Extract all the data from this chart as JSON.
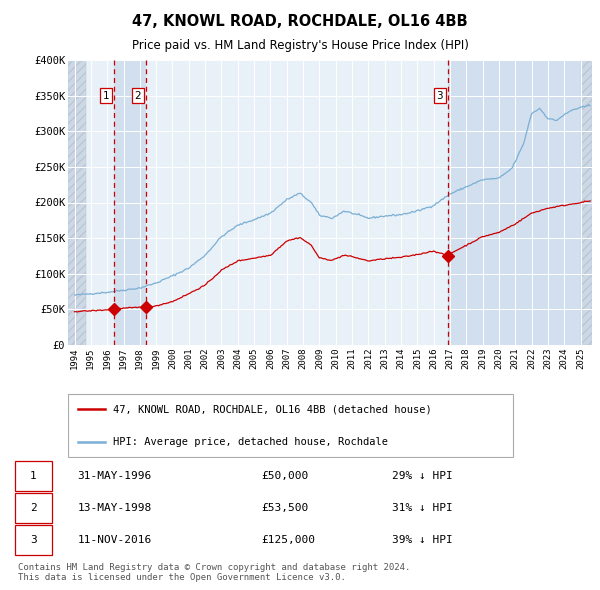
{
  "title": "47, KNOWL ROAD, ROCHDALE, OL16 4BB",
  "subtitle": "Price paid vs. HM Land Registry's House Price Index (HPI)",
  "ylim": [
    0,
    400000
  ],
  "yticks": [
    0,
    50000,
    100000,
    150000,
    200000,
    250000,
    300000,
    350000,
    400000
  ],
  "ytick_labels": [
    "£0",
    "£50K",
    "£100K",
    "£150K",
    "£200K",
    "£250K",
    "£300K",
    "£350K",
    "£400K"
  ],
  "xlim_start": 1993.6,
  "xlim_end": 2025.7,
  "transactions": [
    {
      "index": 1,
      "date_num": 1996.42,
      "price": 50000,
      "label": "1"
    },
    {
      "index": 2,
      "date_num": 1998.37,
      "price": 53500,
      "label": "2"
    },
    {
      "index": 3,
      "date_num": 2016.87,
      "price": 125000,
      "label": "3"
    }
  ],
  "red_color": "#cc0000",
  "blue_color": "#7bafd4",
  "background_color": "#ffffff",
  "plot_bg_color": "#e8f0f8",
  "grid_color": "#ffffff",
  "shade_color": "#ccddf0",
  "hatch_color": "#c8d4e0",
  "legend_entries": [
    "47, KNOWL ROAD, ROCHDALE, OL16 4BB (detached house)",
    "HPI: Average price, detached house, Rochdale"
  ],
  "table_rows": [
    [
      "1",
      "31-MAY-1996",
      "£50,000",
      "29% ↓ HPI"
    ],
    [
      "2",
      "13-MAY-1998",
      "£53,500",
      "31% ↓ HPI"
    ],
    [
      "3",
      "11-NOV-2016",
      "£125,000",
      "39% ↓ HPI"
    ]
  ],
  "footer": "Contains HM Land Registry data © Crown copyright and database right 2024.\nThis data is licensed under the Open Government Licence v3.0."
}
